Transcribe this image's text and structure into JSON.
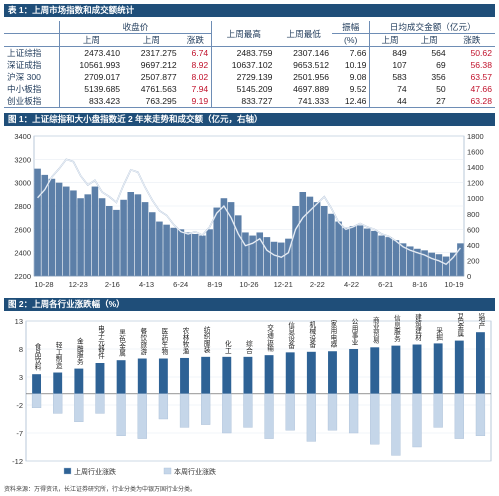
{
  "table1": {
    "title": "表 1：上周市场指数和成交额统计",
    "group_headers": [
      "收盘价",
      "上周最高",
      "上周最低",
      "振幅",
      "日均成交金额（亿元）"
    ],
    "sub_headers": [
      "上周",
      "上周",
      "涨跌",
      "(%)",
      "上周",
      "上周",
      "涨跌"
    ],
    "rows": [
      {
        "name": "上证综指",
        "c1": "2473.410",
        "c2": "2317.275",
        "chg": "6.74",
        "high": "2483.759",
        "low": "2307.146",
        "amp": "7.66",
        "v1": "849",
        "v2": "564",
        "vchg": "50.62"
      },
      {
        "name": "深证成指",
        "c1": "10561.993",
        "c2": "9697.212",
        "chg": "8.92",
        "high": "10637.102",
        "low": "9653.512",
        "amp": "10.19",
        "v1": "107",
        "v2": "69",
        "vchg": "56.38"
      },
      {
        "name": "沪深 300",
        "c1": "2709.017",
        "c2": "2507.877",
        "chg": "8.02",
        "high": "2729.139",
        "low": "2501.956",
        "amp": "9.08",
        "v1": "583",
        "v2": "356",
        "vchg": "63.57"
      },
      {
        "name": "中小板指",
        "c1": "5139.685",
        "c2": "4761.563",
        "chg": "7.94",
        "high": "5145.209",
        "low": "4697.889",
        "amp": "9.52",
        "v1": "74",
        "v2": "50",
        "vchg": "47.66"
      },
      {
        "name": "创业板指",
        "c1": "833.423",
        "c2": "763.295",
        "chg": "9.19",
        "high": "833.727",
        "low": "741.333",
        "amp": "12.46",
        "v1": "44",
        "v2": "27",
        "vchg": "63.28"
      }
    ]
  },
  "chart1_title": "图 1：上证综指和大小盘指数近 2 年来走势和成交额（亿元，右轴）",
  "chart2_title": "图 2：上周各行业涨跌幅（%）",
  "footer": "资料来源：万得资讯，长江证券研究所，行业分类为中银万国行业分类。",
  "chart_data": [
    {
      "type": "line",
      "y_left_ticks": [
        "3400",
        "3200",
        "3000",
        "2800",
        "2600",
        "2400",
        "2200"
      ],
      "y_right_ticks": [
        "1800",
        "1600",
        "1400",
        "1200",
        "1000",
        "800",
        "600",
        "400",
        "200",
        "0"
      ],
      "ylim_left": [
        2200,
        3400
      ],
      "ylim_right": [
        0,
        1800
      ],
      "x_ticks": [
        "10-28",
        "12-23",
        "2-16",
        "4-13",
        "6-24",
        "8-19",
        "10-26",
        "12-21",
        "2-22",
        "4-22",
        "6-21",
        "8-16",
        "10-19"
      ],
      "index_series": [
        2870,
        2940,
        3050,
        3120,
        3200,
        3180,
        3060,
        2980,
        3020,
        2920,
        2880,
        2830,
        2980,
        3110,
        3090,
        2960,
        2850,
        2760,
        2720,
        2640,
        2580,
        2560,
        2580,
        2550,
        2620,
        2740,
        2800,
        2700,
        2560,
        2460,
        2480,
        2520,
        2420,
        2380,
        2360,
        2400,
        2600,
        2700,
        2760,
        2820,
        2880,
        2780,
        2660,
        2600,
        2620,
        2650,
        2620,
        2600,
        2560,
        2540,
        2500,
        2450,
        2420,
        2400,
        2380,
        2350,
        2330,
        2300,
        2360,
        2440
      ],
      "amount_series": [
        1380,
        1300,
        1250,
        1200,
        1150,
        1100,
        1000,
        1050,
        1150,
        1000,
        900,
        850,
        980,
        1080,
        1050,
        950,
        820,
        700,
        660,
        620,
        600,
        560,
        540,
        520,
        600,
        880,
        1000,
        950,
        780,
        560,
        520,
        560,
        500,
        440,
        430,
        480,
        900,
        1080,
        1020,
        950,
        900,
        800,
        700,
        620,
        640,
        650,
        610,
        580,
        520,
        500,
        460,
        420,
        380,
        350,
        330,
        300,
        280,
        250,
        300,
        420
      ]
    },
    {
      "type": "bar",
      "ylim": [
        -12,
        13
      ],
      "y_ticks": [
        "13",
        "8",
        "3",
        "-2",
        "-7",
        "-12"
      ],
      "categories": [
        "食品饮料",
        "轻工制造",
        "金融服务",
        "电子元器件",
        "黑色金属",
        "餐饮旅游",
        "医药生物",
        "农林牧渔",
        "纺织服装",
        "化工",
        "综合",
        "交通运输",
        "信息设备",
        "机械设备",
        "家用电器",
        "公用事业",
        "商业贸易",
        "信息服务",
        "建筑建材",
        "采掘",
        "有色金属",
        "房地产"
      ],
      "series": [
        {
          "name": "上周行业涨跌",
          "values": [
            3.5,
            3.8,
            4.5,
            5.5,
            6.0,
            6.3,
            6.3,
            6.4,
            6.6,
            6.6,
            6.6,
            6.9,
            7.4,
            7.5,
            7.6,
            8.0,
            8.3,
            8.6,
            8.8,
            9.0,
            9.5,
            11.0
          ]
        },
        {
          "name": "本周行业涨跌",
          "values": [
            -2.5,
            -3.5,
            -5.0,
            -3.5,
            -7.5,
            -8.0,
            -4.5,
            -6.0,
            -5.5,
            -7.0,
            -6.0,
            -8.0,
            -6.5,
            -8.5,
            -6.5,
            -7.0,
            -9.0,
            -11.0,
            -9.5,
            -6.0,
            -8.0,
            -7.5
          ]
        }
      ]
    }
  ]
}
